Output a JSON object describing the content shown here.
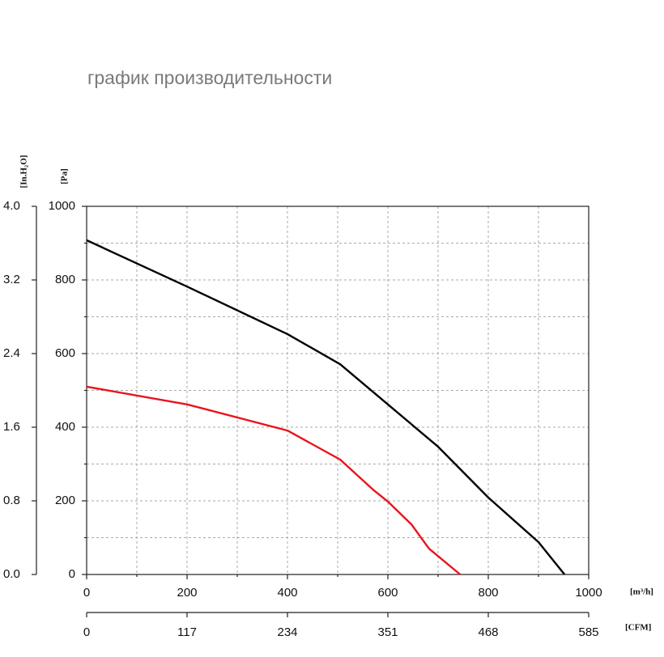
{
  "chart_data": {
    "type": "line",
    "title": "график производительности",
    "y_label": "[Pa]",
    "y2_label": "[In.H₂O]",
    "x_label": "[m³/h]",
    "x2_label": "[CFM]",
    "xlim": [
      0,
      1000
    ],
    "xticks": [
      0,
      200,
      400,
      600,
      800,
      1000
    ],
    "xminorticks": [
      100,
      300,
      500,
      700,
      900
    ],
    "x2lim": [
      0,
      585
    ],
    "x2ticks": [
      0,
      117,
      234,
      351,
      468,
      585
    ],
    "ylim": [
      0,
      1000
    ],
    "yticks": [
      0,
      200,
      400,
      600,
      800,
      1000
    ],
    "yminorticks": [
      100,
      300,
      500,
      700,
      900
    ],
    "y2lim": [
      0,
      4
    ],
    "y2ticks": [
      {
        "value": 0,
        "label": "0.0"
      },
      0.8,
      1.6,
      2.4,
      3.2,
      {
        "value": 4,
        "label": "4.0"
      }
    ],
    "grid": true,
    "series": [
      {
        "color": "#000000",
        "x": [
          0,
          200,
          400,
          505,
          600,
          700,
          800,
          900,
          952
        ],
        "values": [
          908,
          782,
          653,
          571,
          462,
          347,
          209,
          88,
          0
        ]
      },
      {
        "color": "#e8141c",
        "x": [
          0,
          200,
          400,
          505,
          570,
          600,
          647,
          682,
          744
        ],
        "values": [
          510,
          462,
          391,
          312,
          231,
          198,
          136,
          70,
          0
        ]
      }
    ]
  }
}
